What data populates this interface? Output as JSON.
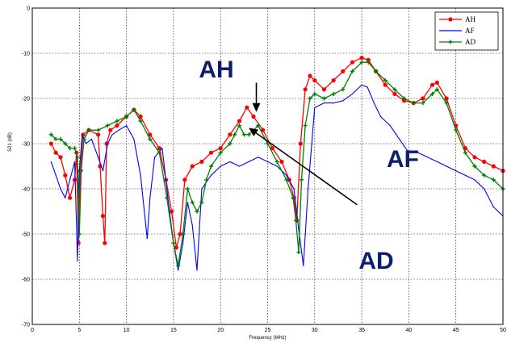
{
  "chart_data": {
    "type": "line",
    "title": "",
    "xlabel": "Frequency (MHz)",
    "ylabel": "S21 (dB)",
    "xlim": [
      0,
      50
    ],
    "ylim": [
      -70,
      0
    ],
    "xticks": [
      "0",
      "5",
      "10",
      "15",
      "20",
      "25",
      "30",
      "35",
      "40",
      "45",
      "50"
    ],
    "yticks": [
      "0",
      "-10",
      "-20",
      "-30",
      "-40",
      "-50",
      "-60",
      "-70"
    ],
    "grid": true,
    "legend_position": "top-right",
    "series": [
      {
        "name": "AH",
        "color": "#ff0000",
        "marker": "dot",
        "x": [
          2,
          2.5,
          3,
          3.5,
          4,
          4.5,
          4.7,
          4.9,
          5.1,
          5.4,
          6,
          7,
          7.2,
          7.5,
          7.7,
          7.9,
          8.3,
          9,
          10,
          10.8,
          11.5,
          12.5,
          13.5,
          14.2,
          14.8,
          15.3,
          15.7,
          16.2,
          17,
          18,
          19,
          20,
          21,
          22,
          22.8,
          23.5,
          24.5,
          25.5,
          26.5,
          27.3,
          27.8,
          28.1,
          28.5,
          29,
          29.5,
          30,
          31,
          32,
          33,
          34,
          35,
          35.7,
          36.5,
          37.5,
          38.5,
          39.5,
          40.5,
          41.5,
          42.5,
          43,
          44,
          45,
          46,
          47,
          48,
          49,
          50
        ],
        "y": [
          -30,
          -32,
          -33,
          -37,
          -42,
          -38,
          -32,
          -52,
          -36,
          -28,
          -27,
          -28,
          -35,
          -46,
          -52,
          -30,
          -27,
          -26,
          -24,
          -22.5,
          -24,
          -28,
          -31,
          -38,
          -45,
          -53,
          -50,
          -38,
          -35,
          -34,
          -32,
          -31,
          -28,
          -25,
          -22,
          -24,
          -27,
          -31,
          -34,
          -38,
          -42,
          -47,
          -30,
          -18,
          -15,
          -16,
          -18,
          -16,
          -14,
          -12,
          -11,
          -11.5,
          -14,
          -17,
          -19,
          -20.5,
          -21,
          -20,
          -17,
          -16.5,
          -20,
          -26,
          -31,
          -33,
          -34,
          -35,
          -36
        ]
      },
      {
        "name": "AF",
        "color": "#0000ff",
        "marker": "none",
        "x": [
          2,
          2.5,
          3,
          3.5,
          4,
          4.5,
          4.8,
          5,
          5.3,
          5.7,
          6.3,
          7,
          7.5,
          8,
          8.5,
          9.2,
          10,
          10.8,
          11.5,
          12.2,
          12.5,
          13,
          13.8,
          14.4,
          15,
          15.5,
          16,
          16.5,
          17,
          17.5,
          18,
          19,
          20,
          21,
          22,
          23,
          24,
          25,
          26,
          27,
          27.8,
          28.3,
          28.8,
          29.3,
          30,
          31,
          32,
          33,
          34,
          35,
          35.6,
          36.3,
          37,
          38,
          39,
          40,
          41,
          42,
          43,
          44,
          45,
          46,
          47,
          48,
          49,
          50
        ],
        "y": [
          -34,
          -37,
          -40,
          -42,
          -38,
          -34,
          -56,
          -36,
          -28,
          -30,
          -29,
          -33,
          -36,
          -30,
          -28,
          -27,
          -26,
          -29,
          -37,
          -51,
          -42,
          -33,
          -31,
          -42,
          -52,
          -58,
          -52,
          -43,
          -48,
          -58,
          -40,
          -37,
          -35,
          -34,
          -35,
          -34,
          -33,
          -34,
          -35,
          -37,
          -40,
          -49,
          -57,
          -40,
          -22,
          -21,
          -21,
          -20.5,
          -19,
          -17,
          -17.5,
          -21,
          -24,
          -26,
          -29,
          -32,
          -32,
          -33,
          -34,
          -35,
          -36,
          -37,
          -38,
          -40,
          -44,
          -46
        ]
      },
      {
        "name": "AD",
        "color": "#008000",
        "marker": "plus",
        "x": [
          2,
          2.5,
          3,
          3.5,
          4,
          4.5,
          4.8,
          5,
          5.2,
          5.5,
          6,
          7,
          8,
          9,
          10,
          10.8,
          11.5,
          12.5,
          13.5,
          14.3,
          15,
          15.5,
          16,
          16.5,
          17,
          17.5,
          18,
          18.5,
          19,
          20,
          21,
          21.5,
          22,
          22.5,
          23,
          24,
          25,
          26,
          27,
          27.7,
          28,
          28.3,
          28.6,
          29,
          29.5,
          30,
          31,
          32,
          33,
          34,
          35,
          35.7,
          36.5,
          37.5,
          38.5,
          39.5,
          40.5,
          41.5,
          42.5,
          43,
          44,
          45,
          46,
          47,
          48,
          49,
          50
        ],
        "y": [
          -28,
          -29,
          -29,
          -30,
          -31,
          -31,
          -33,
          -50,
          -36,
          -29,
          -27,
          -27,
          -26,
          -25,
          -24,
          -22.5,
          -25,
          -29,
          -32,
          -42,
          -52,
          -57,
          -50,
          -40,
          -43,
          -45,
          -43,
          -38,
          -35,
          -32,
          -30,
          -28,
          -26,
          -28,
          -28,
          -26,
          -30,
          -34,
          -38,
          -42,
          -47,
          -54,
          -38,
          -26,
          -20,
          -19,
          -20,
          -19,
          -18,
          -14,
          -12,
          -12,
          -14,
          -16,
          -18,
          -20,
          -21,
          -21,
          -19,
          -18,
          -21,
          -27,
          -32,
          -35,
          -37,
          -38,
          -40
        ]
      }
    ],
    "annotations": [
      {
        "text": "AH",
        "target_x": 23.8,
        "target_y": -23,
        "from_x": 23.8,
        "from_y": -16.5
      },
      {
        "text": "AF"
      },
      {
        "text": "AD",
        "target_x": 23.0,
        "target_y": -26.5,
        "from_x": 34.5,
        "from_y": -43.5
      }
    ]
  }
}
